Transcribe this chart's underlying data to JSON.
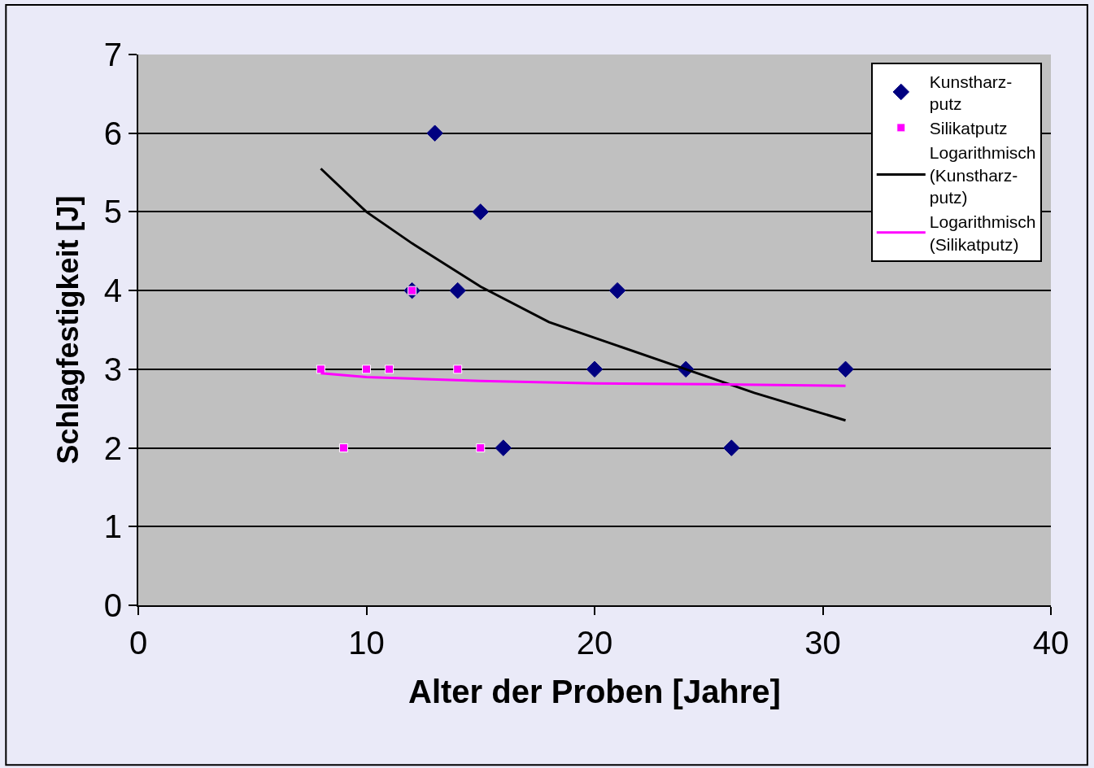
{
  "chart_data": {
    "type": "scatter",
    "xlabel": "Alter der Proben [Jahre]",
    "ylabel": "Schlagfestigkeit [J]",
    "xlim": [
      0,
      40
    ],
    "xticks": [
      0,
      10,
      20,
      30,
      40
    ],
    "ylim": [
      0,
      7
    ],
    "yticks": [
      0,
      1,
      2,
      3,
      4,
      5,
      6,
      7
    ],
    "grid": "y",
    "legend": "top right",
    "series": [
      {
        "name": "Kunstharz-\nputz",
        "marker": "diamond",
        "color": "#000080",
        "x": [
          13,
          15,
          12,
          14,
          21,
          20,
          24,
          31,
          16,
          26
        ],
        "values": [
          6,
          5,
          4,
          4,
          4,
          3,
          3,
          3,
          2,
          2
        ]
      },
      {
        "name": "Silikatputz",
        "marker": "square",
        "color": "#ff00ff",
        "x": [
          8,
          10,
          11,
          12,
          14,
          9,
          15
        ],
        "values": [
          3,
          3,
          3,
          4,
          3,
          2,
          2
        ]
      },
      {
        "name": "Logarithmisch\n(Kunstharz-\nputz)",
        "type": "line",
        "marker": "none",
        "line_style": "solid",
        "color": "#000000",
        "x": [
          8,
          10,
          12,
          15,
          18,
          21,
          24,
          27,
          31
        ],
        "values": [
          5.55,
          5.0,
          4.6,
          4.05,
          3.6,
          3.3,
          3.0,
          2.7,
          2.35
        ]
      },
      {
        "name": "Logarithmisch\n(Silikatputz)",
        "type": "line",
        "marker": "none",
        "line_style": "solid",
        "color": "#ff00ff",
        "x": [
          8,
          10,
          15,
          20,
          25,
          31
        ],
        "values": [
          2.95,
          2.9,
          2.85,
          2.82,
          2.81,
          2.79
        ]
      }
    ]
  }
}
